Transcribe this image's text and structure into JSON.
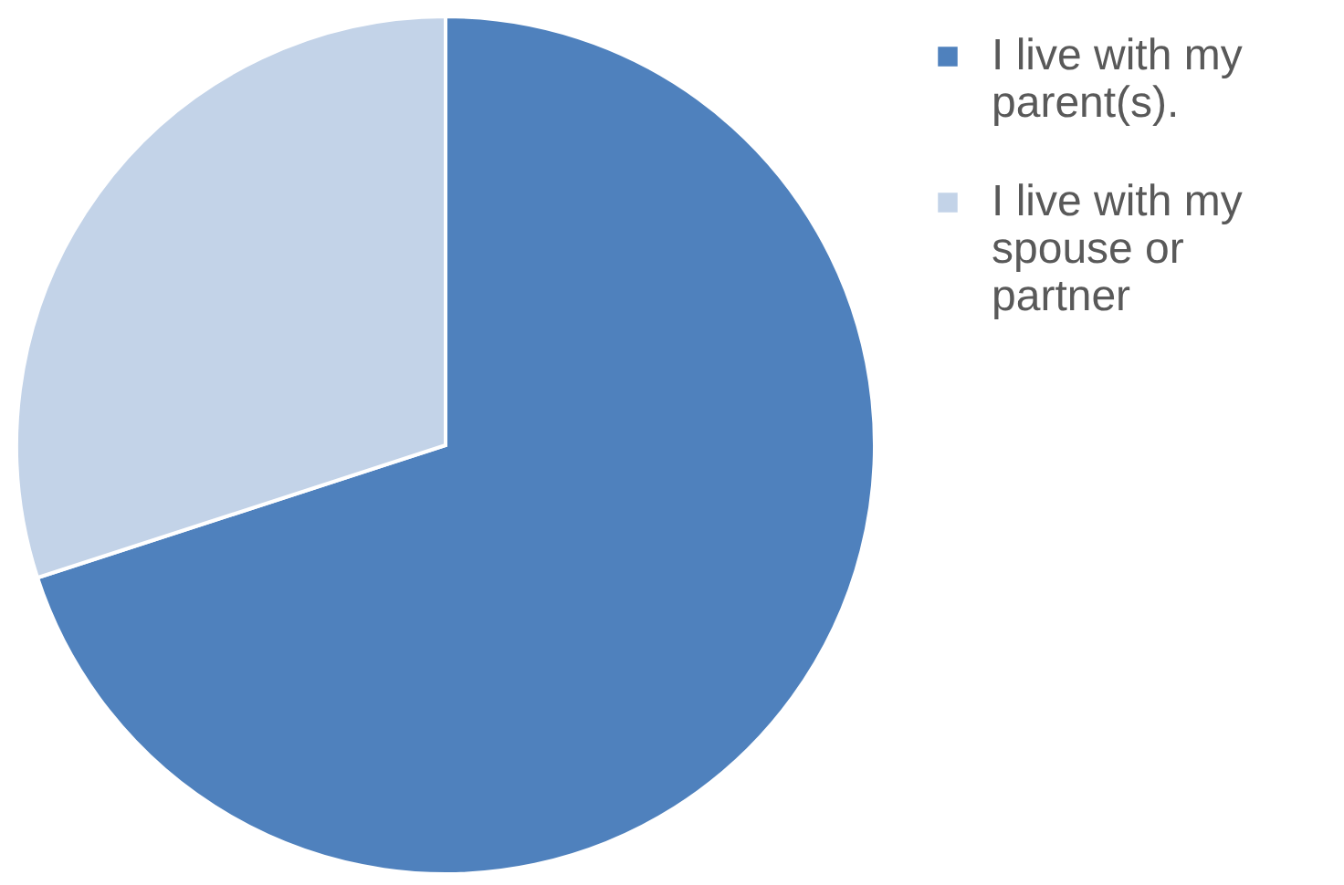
{
  "chart_data": {
    "type": "pie",
    "categories": [
      "I live with my parent(s).",
      "I live with my spouse or partner"
    ],
    "values": [
      70,
      30
    ],
    "colors": [
      "#4f81bd",
      "#c3d3e8"
    ],
    "legend": "right"
  }
}
